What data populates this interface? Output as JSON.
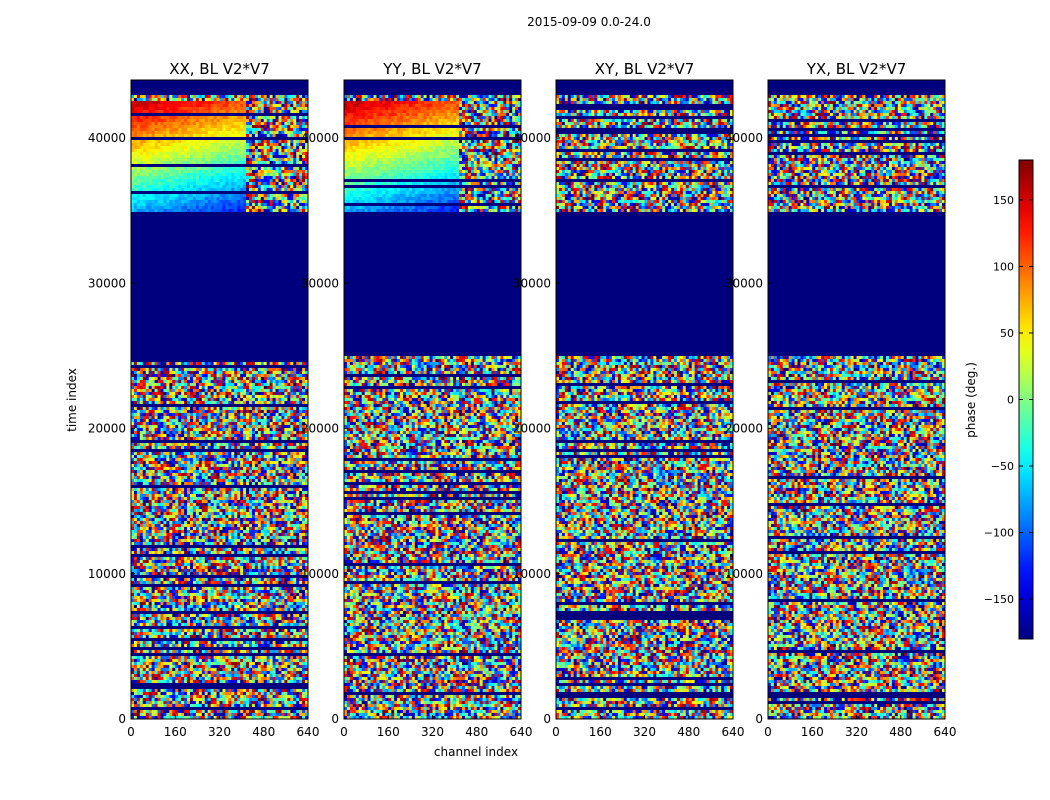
{
  "chart_data": {
    "type": "heatmap",
    "suptitle": "2015-09-09 0.0-24.0",
    "xlabel": "channel index",
    "ylabel": "time index",
    "xlim": [
      0,
      640
    ],
    "ylim": [
      0,
      44000
    ],
    "xticks": [
      "0",
      "160",
      "320",
      "480",
      "640"
    ],
    "xtick_values": [
      0,
      160,
      320,
      480,
      640
    ],
    "yticks": [
      "0",
      "10000",
      "20000",
      "30000",
      "40000"
    ],
    "ytick_values": [
      0,
      10000,
      20000,
      30000,
      40000
    ],
    "panels": [
      {
        "title": "XX, BL V2*V7",
        "polarization": "XX"
      },
      {
        "title": "YY, BL V2*V7",
        "polarization": "YY"
      },
      {
        "title": "XY, BL V2*V7",
        "polarization": "XY"
      },
      {
        "title": "YX, BL V2*V7",
        "polarization": "YX"
      }
    ],
    "colorbar": {
      "label": "phase (deg.)",
      "range": [
        -180,
        180
      ],
      "ticks": [
        "150",
        "100",
        "50",
        "0",
        "−50",
        "−100",
        "−150"
      ],
      "tick_values": [
        150,
        100,
        50,
        0,
        -50,
        -100,
        -150
      ],
      "colormap": "jet"
    },
    "regions": {
      "flagged_blank_time_range": [
        25000,
        35000
      ],
      "top_flagged_time_range": [
        43000,
        44000
      ],
      "coherent_phase_time_range_parallel_hands": [
        35000,
        42500
      ]
    }
  }
}
